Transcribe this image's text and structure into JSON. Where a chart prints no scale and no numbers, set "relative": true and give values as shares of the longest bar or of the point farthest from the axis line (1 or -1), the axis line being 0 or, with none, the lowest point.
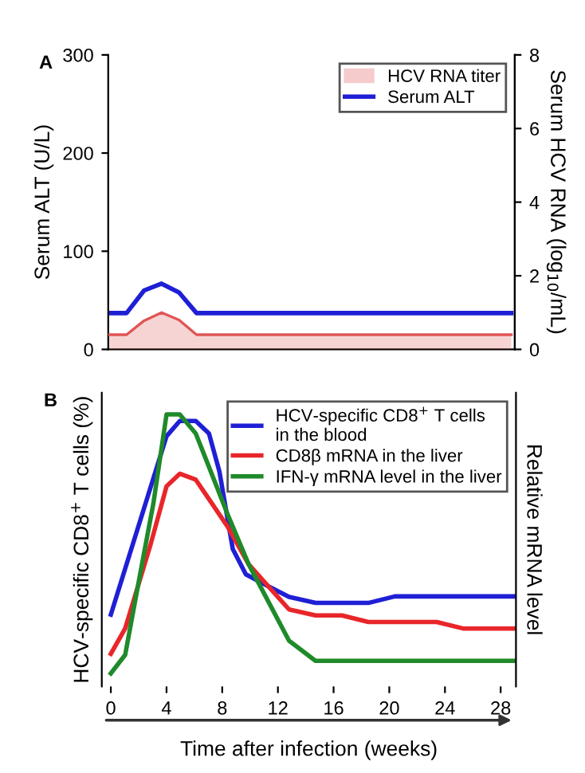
{
  "chart_data": [
    {
      "type": "line",
      "annotations": [
        "A"
      ],
      "ylabel": "Serum ALT (U/L)",
      "y2label": "Serum HCV RNA (log$_{10}$/mL)",
      "categories": [
        null,
        null,
        null,
        null,
        null,
        null,
        null,
        null,
        null,
        null,
        null,
        null,
        null,
        null,
        null,
        null,
        null,
        null,
        null,
        null,
        null,
        null,
        null,
        null
      ],
      "ylim": [
        0,
        300
      ],
      "yticks": [
        0,
        100,
        200,
        300
      ],
      "y2lim": [
        0,
        8
      ],
      "y2ticks": [
        0,
        2,
        4,
        6,
        8
      ],
      "tick_labels": "y",
      "legend": "top right",
      "grid": false,
      "series": [
        {
          "name": "HCV RNA titer",
          "type": "area",
          "axis": "y2",
          "color": "#e05555",
          "values": [
            0.4,
            0.4,
            0.78,
            1.0,
            0.8,
            0.4,
            0.4,
            0.4,
            0.4,
            0.4,
            0.4,
            0.4,
            0.4,
            0.4,
            0.4,
            0.4,
            0.4,
            0.4,
            0.4,
            0.4,
            0.4,
            0.4,
            0.4,
            0.4
          ]
        },
        {
          "name": "Serum ALT",
          "axis": "y",
          "color": "#1f1fd6",
          "values": [
            37,
            37,
            60,
            67,
            58,
            37,
            37,
            37,
            37,
            37,
            37,
            37,
            37,
            37,
            37,
            37,
            37,
            37,
            37,
            37,
            37,
            37,
            37,
            37
          ]
        }
      ]
    },
    {
      "type": "line",
      "annotations": [
        "B"
      ],
      "relative": true,
      "xlabel": "Time after infection (weeks)",
      "ylabel": "HCV-specific CD8$^{+}$ T cells (%)",
      "y2label": "Relative mRNA level",
      "xlim": [
        -0.65,
        29.1
      ],
      "xticks": [
        0,
        4,
        8,
        12,
        16,
        20,
        24,
        28
      ],
      "legend": "top right",
      "grid": false,
      "series": [
        {
          "name": "HCV-specific CD8$^{+}$ T cells\nin the blood",
          "color": "#1f1fd6",
          "x": [
            0,
            4.0,
            4.95,
            6.1,
            7.05,
            7.8,
            8.76,
            9.7,
            11.4,
            12.8,
            14.7,
            18.5,
            20.4,
            28.95
          ],
          "values": [
            0.264,
            0.92,
            0.976,
            0.976,
            0.93,
            0.79,
            0.505,
            0.412,
            0.366,
            0.329,
            0.307,
            0.307,
            0.331,
            0.331
          ]
        },
        {
          "name": "CD8β mRNA in the liver",
          "color": "#e8262a",
          "x": [
            0,
            1.03,
            2.86,
            4.0,
            4.95,
            6.1,
            8.38,
            9.9,
            12.8,
            14.7,
            16.6,
            18.5,
            23.4,
            25.3,
            28.95
          ],
          "values": [
            0.12,
            0.213,
            0.523,
            0.736,
            0.782,
            0.76,
            0.588,
            0.449,
            0.283,
            0.261,
            0.261,
            0.237,
            0.237,
            0.213,
            0.213
          ]
        },
        {
          "name": "IFN-γ mRNA level in the liver",
          "color": "#1f8a2a",
          "x": [
            0,
            1.03,
            2.1,
            3.05,
            4.0,
            4.95,
            6.1,
            8.38,
            9.9,
            12.8,
            14.7,
            28.95
          ],
          "values": [
            0.048,
            0.116,
            0.412,
            0.671,
            1.0,
            1.0,
            0.93,
            0.634,
            0.449,
            0.168,
            0.094,
            0.094
          ]
        }
      ]
    }
  ]
}
